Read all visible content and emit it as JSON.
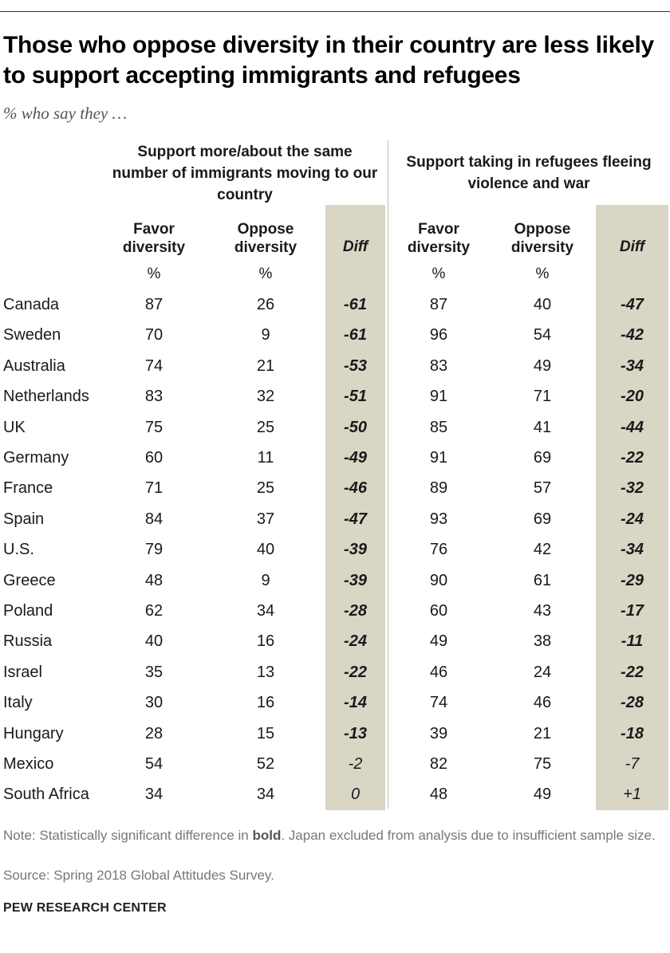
{
  "title": "Those who oppose diversity in their country are less likely to support accepting immigrants and refugees",
  "subtitle": "% who say they …",
  "colors": {
    "diff_shade": "#dad6c6",
    "text": "#1a1a1a",
    "note": "#777777"
  },
  "chart_data": {
    "type": "table",
    "groups": [
      {
        "title": "Support more/about the same number of immigrants moving to our country",
        "columns": [
          {
            "label": "Favor diversity",
            "unit": "%"
          },
          {
            "label": "Oppose diversity",
            "unit": "%"
          },
          {
            "label": "Diff",
            "unit": ""
          }
        ]
      },
      {
        "title": "Support taking in refugees fleeing violence and war",
        "columns": [
          {
            "label": "Favor diversity",
            "unit": "%"
          },
          {
            "label": "Oppose diversity",
            "unit": "%"
          },
          {
            "label": "Diff",
            "unit": ""
          }
        ]
      }
    ],
    "rows": [
      {
        "country": "Canada",
        "imm_favor": "87",
        "imm_oppose": "26",
        "imm_diff": "-61",
        "imm_sig": true,
        "ref_favor": "87",
        "ref_oppose": "40",
        "ref_diff": "-47",
        "ref_sig": true
      },
      {
        "country": "Sweden",
        "imm_favor": "70",
        "imm_oppose": "9",
        "imm_diff": "-61",
        "imm_sig": true,
        "ref_favor": "96",
        "ref_oppose": "54",
        "ref_diff": "-42",
        "ref_sig": true
      },
      {
        "country": "Australia",
        "imm_favor": "74",
        "imm_oppose": "21",
        "imm_diff": "-53",
        "imm_sig": true,
        "ref_favor": "83",
        "ref_oppose": "49",
        "ref_diff": "-34",
        "ref_sig": true
      },
      {
        "country": "Netherlands",
        "imm_favor": "83",
        "imm_oppose": "32",
        "imm_diff": "-51",
        "imm_sig": true,
        "ref_favor": "91",
        "ref_oppose": "71",
        "ref_diff": "-20",
        "ref_sig": true
      },
      {
        "country": "UK",
        "imm_favor": "75",
        "imm_oppose": "25",
        "imm_diff": "-50",
        "imm_sig": true,
        "ref_favor": "85",
        "ref_oppose": "41",
        "ref_diff": "-44",
        "ref_sig": true
      },
      {
        "country": "Germany",
        "imm_favor": "60",
        "imm_oppose": "11",
        "imm_diff": "-49",
        "imm_sig": true,
        "ref_favor": "91",
        "ref_oppose": "69",
        "ref_diff": "-22",
        "ref_sig": true
      },
      {
        "country": "France",
        "imm_favor": "71",
        "imm_oppose": "25",
        "imm_diff": "-46",
        "imm_sig": true,
        "ref_favor": "89",
        "ref_oppose": "57",
        "ref_diff": "-32",
        "ref_sig": true
      },
      {
        "country": "Spain",
        "imm_favor": "84",
        "imm_oppose": "37",
        "imm_diff": "-47",
        "imm_sig": true,
        "ref_favor": "93",
        "ref_oppose": "69",
        "ref_diff": "-24",
        "ref_sig": true
      },
      {
        "country": "U.S.",
        "imm_favor": "79",
        "imm_oppose": "40",
        "imm_diff": "-39",
        "imm_sig": true,
        "ref_favor": "76",
        "ref_oppose": "42",
        "ref_diff": "-34",
        "ref_sig": true
      },
      {
        "country": "Greece",
        "imm_favor": "48",
        "imm_oppose": "9",
        "imm_diff": "-39",
        "imm_sig": true,
        "ref_favor": "90",
        "ref_oppose": "61",
        "ref_diff": "-29",
        "ref_sig": true
      },
      {
        "country": "Poland",
        "imm_favor": "62",
        "imm_oppose": "34",
        "imm_diff": "-28",
        "imm_sig": true,
        "ref_favor": "60",
        "ref_oppose": "43",
        "ref_diff": "-17",
        "ref_sig": true
      },
      {
        "country": "Russia",
        "imm_favor": "40",
        "imm_oppose": "16",
        "imm_diff": "-24",
        "imm_sig": true,
        "ref_favor": "49",
        "ref_oppose": "38",
        "ref_diff": "-11",
        "ref_sig": true
      },
      {
        "country": "Israel",
        "imm_favor": "35",
        "imm_oppose": "13",
        "imm_diff": "-22",
        "imm_sig": true,
        "ref_favor": "46",
        "ref_oppose": "24",
        "ref_diff": "-22",
        "ref_sig": true
      },
      {
        "country": "Italy",
        "imm_favor": "30",
        "imm_oppose": "16",
        "imm_diff": "-14",
        "imm_sig": true,
        "ref_favor": "74",
        "ref_oppose": "46",
        "ref_diff": "-28",
        "ref_sig": true
      },
      {
        "country": "Hungary",
        "imm_favor": "28",
        "imm_oppose": "15",
        "imm_diff": "-13",
        "imm_sig": true,
        "ref_favor": "39",
        "ref_oppose": "21",
        "ref_diff": "-18",
        "ref_sig": true
      },
      {
        "country": "Mexico",
        "imm_favor": "54",
        "imm_oppose": "52",
        "imm_diff": "-2",
        "imm_sig": false,
        "ref_favor": "82",
        "ref_oppose": "75",
        "ref_diff": "-7",
        "ref_sig": false
      },
      {
        "country": "South Africa",
        "imm_favor": "34",
        "imm_oppose": "34",
        "imm_diff": "0",
        "imm_sig": false,
        "ref_favor": "48",
        "ref_oppose": "49",
        "ref_diff": "+1",
        "ref_sig": false
      }
    ]
  },
  "note": {
    "prefix": "Note: Statistically significant difference in ",
    "bold_word": "bold",
    "suffix": ". Japan excluded from analysis due to insufficient sample size."
  },
  "source": "Source: Spring 2018 Global Attitudes Survey.",
  "brand": "PEW RESEARCH CENTER"
}
